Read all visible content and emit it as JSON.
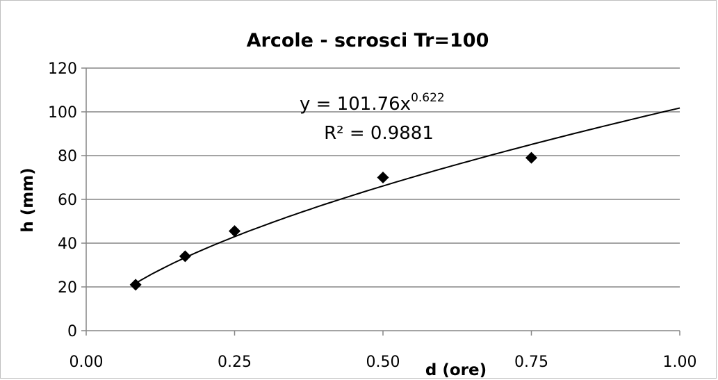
{
  "chart_data": {
    "type": "scatter",
    "title": "Arcole - scrosci Tr=100",
    "xlabel": "d (ore)",
    "ylabel": "h (mm)",
    "xlim": [
      0,
      1
    ],
    "ylim": [
      0,
      120
    ],
    "x_ticks": [
      "0.00",
      "0.25",
      "0.50",
      "0.75",
      "1.00"
    ],
    "y_ticks": [
      "0",
      "20",
      "40",
      "60",
      "80",
      "100",
      "120"
    ],
    "grid": "horizontal",
    "legend": "none",
    "series": [
      {
        "marker": "diamond",
        "color": "#000000",
        "points": [
          {
            "x": 0.0833,
            "y": 21
          },
          {
            "x": 0.1667,
            "y": 34
          },
          {
            "x": 0.25,
            "y": 45.5
          },
          {
            "x": 0.5,
            "y": 70
          },
          {
            "x": 0.75,
            "y": 79
          }
        ]
      }
    ],
    "trendline": {
      "type": "power",
      "a": 101.76,
      "b": 0.622,
      "equation_main": "y = 101.76x",
      "equation_exponent": "0.622",
      "r_squared_label": "R² = 0.9881"
    }
  }
}
